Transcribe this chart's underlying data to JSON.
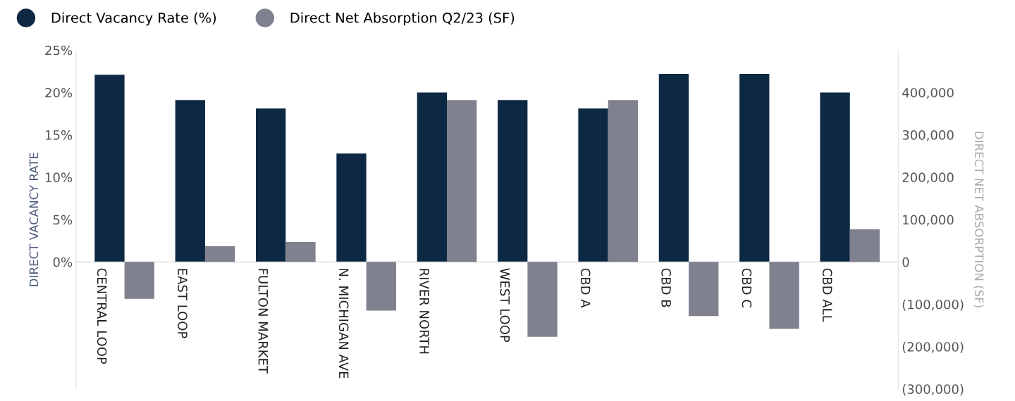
{
  "chart_data": {
    "type": "bar",
    "ylabel": "DIRECT VACANCY RATE",
    "y2label": "DIRECT NET ABSORPTION (SF)",
    "categories": [
      "CENTRAL LOOP",
      "EAST LOOP",
      "FULTON MARKET",
      "N. MICHIGAN AVE",
      "RIVER NORTH",
      "WEST LOOP",
      "CBD A",
      "CBD B",
      "CBD C",
      "CBD ALL"
    ],
    "series": [
      {
        "name": "Direct Vacancy Rate (%)",
        "color": "#0d2843",
        "values": [
          22.1,
          19.1,
          18.1,
          12.8,
          20.0,
          19.1,
          18.1,
          22.2,
          22.2,
          20.0
        ]
      },
      {
        "name": "Direct Net Absorption Q2/23 (SF)",
        "color": "#80818f",
        "axis": "y2",
        "values": [
          -87000,
          37000,
          47000,
          -115000,
          382000,
          -177000,
          382000,
          -128000,
          -158000,
          77000
        ]
      }
    ],
    "ylim": [
      -15,
      25
    ],
    "yticks": [
      {
        "value": 0,
        "label": "0%"
      },
      {
        "value": 5,
        "label": "5%"
      },
      {
        "value": 10,
        "label": "10%"
      },
      {
        "value": 15,
        "label": "15%"
      },
      {
        "value": 20,
        "label": "20%"
      },
      {
        "value": 25,
        "label": "25%"
      }
    ],
    "y2lim": [
      -300000,
      500000
    ],
    "y2ticks": [
      {
        "value": -300000,
        "label": "(300,000)"
      },
      {
        "value": -200000,
        "label": "(200,000)"
      },
      {
        "value": -100000,
        "label": "(100,000)"
      },
      {
        "value": 0,
        "label": "0"
      },
      {
        "value": 100000,
        "label": "100,000"
      },
      {
        "value": 200000,
        "label": "200,000"
      },
      {
        "value": 300000,
        "label": "300,000"
      },
      {
        "value": 400000,
        "label": "400,000"
      }
    ],
    "legend": "top left",
    "grid": false
  }
}
